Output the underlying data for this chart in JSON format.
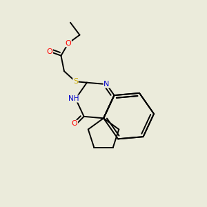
{
  "background_color": "#ebebdb",
  "atom_colors": {
    "O": "#ff0000",
    "N": "#0000cc",
    "S": "#ccaa00",
    "C": "#000000"
  },
  "bond_color": "#000000",
  "bond_width": 1.4
}
